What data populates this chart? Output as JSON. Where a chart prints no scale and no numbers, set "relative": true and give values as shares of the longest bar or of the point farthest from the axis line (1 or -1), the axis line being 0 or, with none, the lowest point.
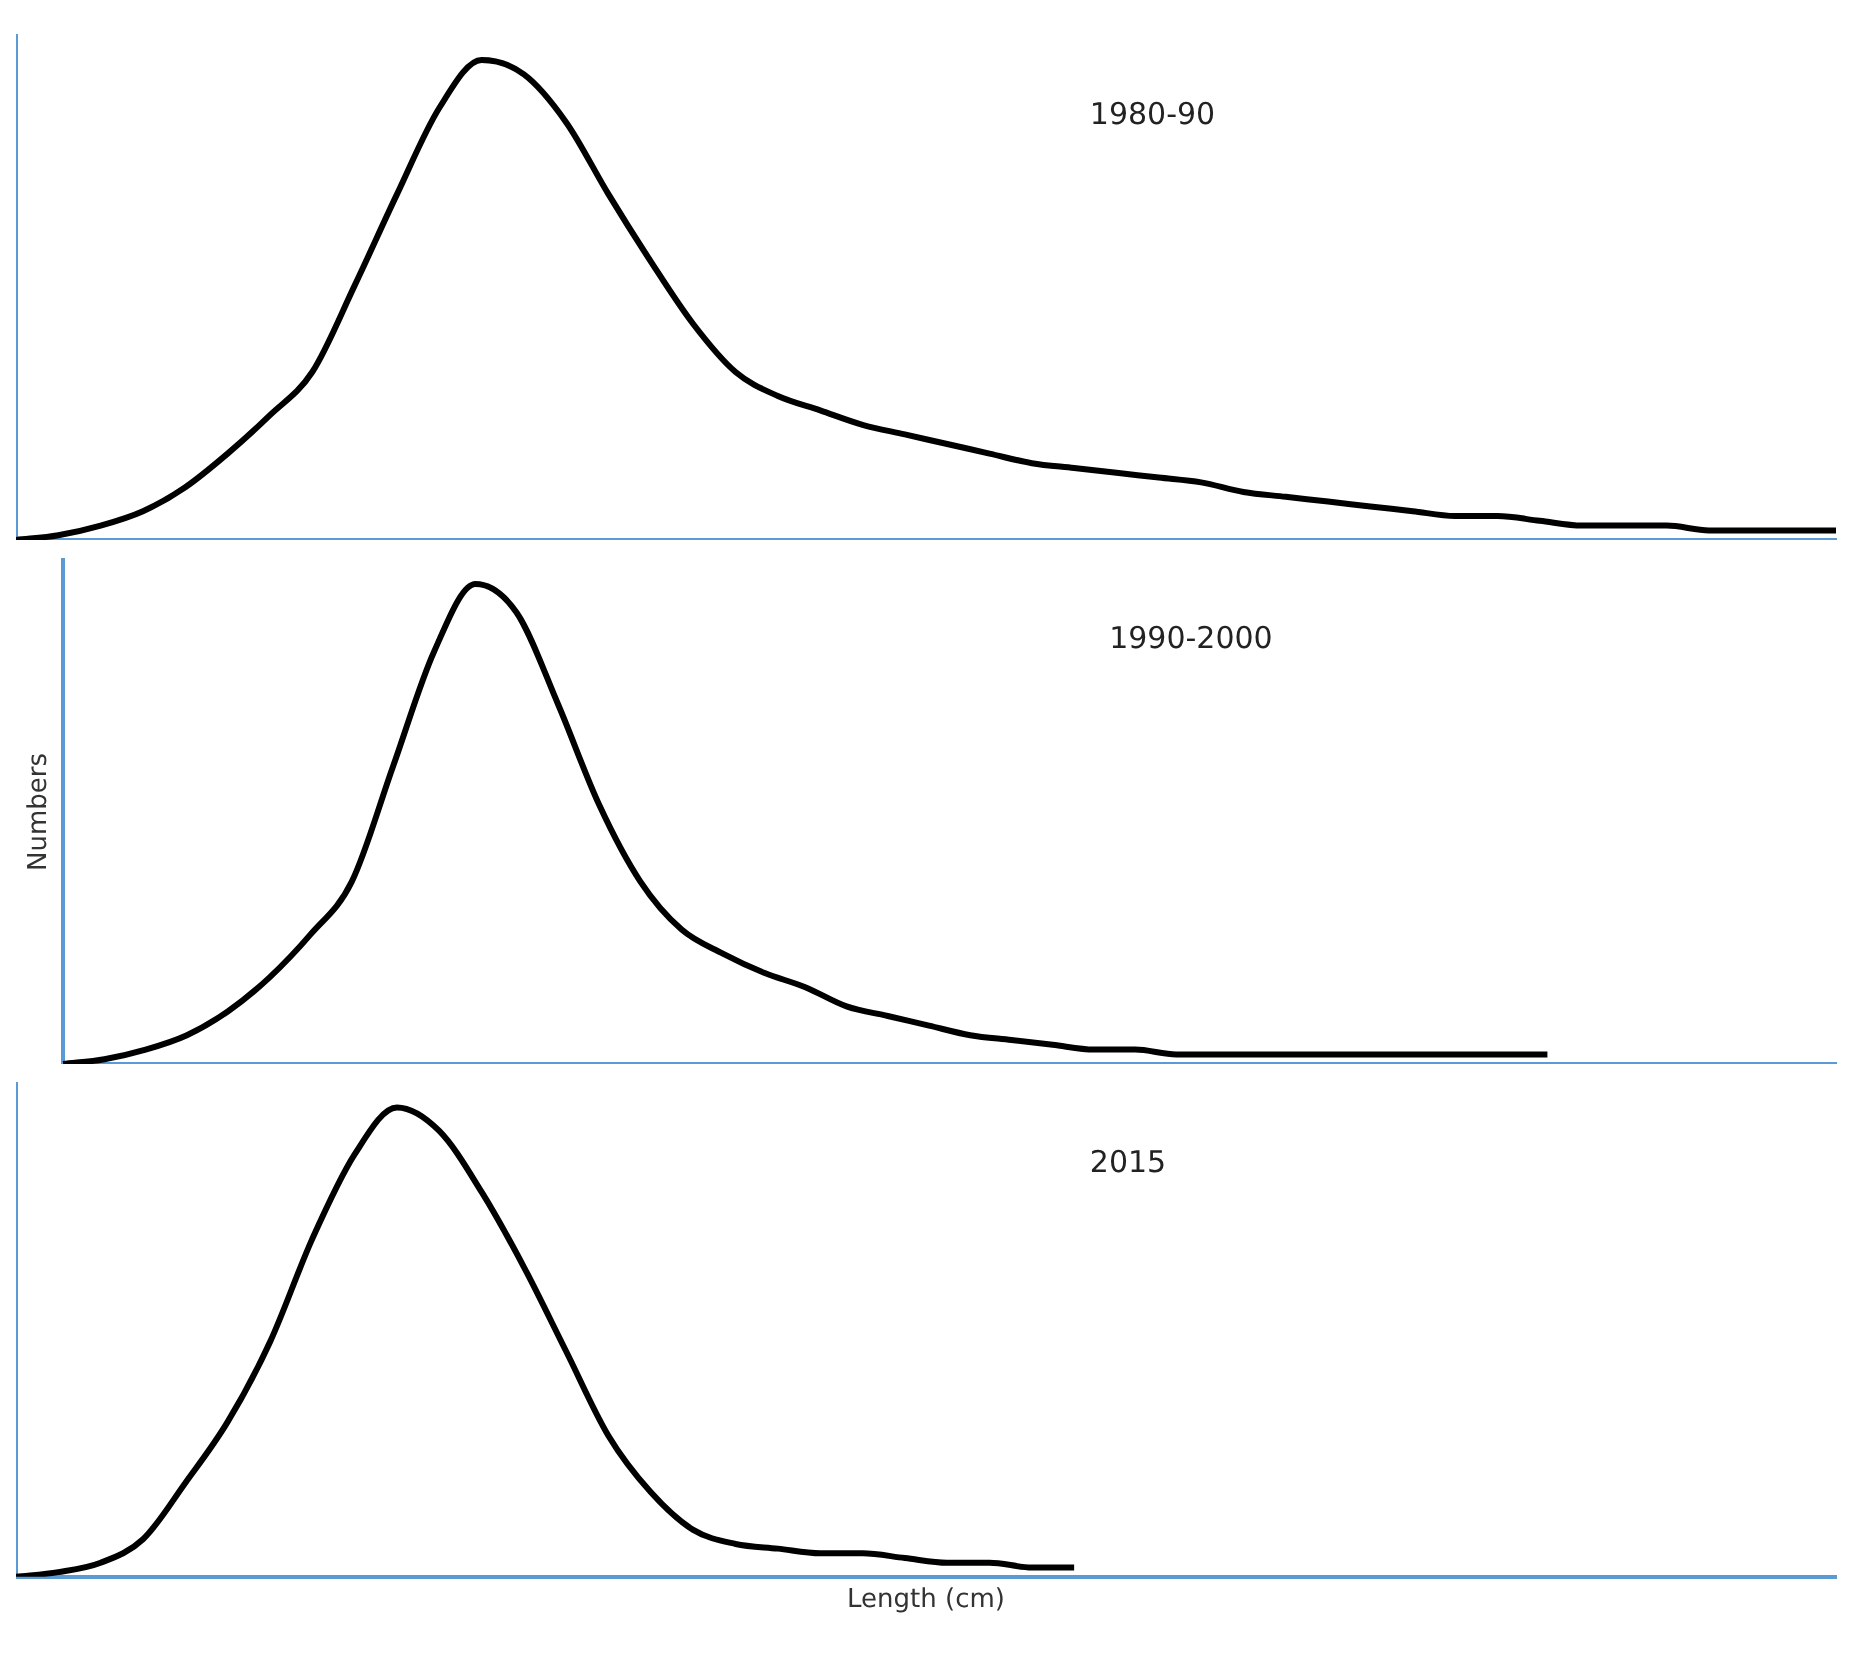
{
  "chart_data": [
    {
      "type": "line",
      "relative": true,
      "color": "#000000",
      "annotations": [
        "1980-90"
      ],
      "categories": [
        null,
        null,
        null,
        null,
        null,
        null,
        null,
        null,
        null,
        null,
        null,
        null,
        null,
        null,
        null,
        null,
        null,
        null,
        null,
        null,
        null,
        null,
        null,
        null,
        null,
        null,
        null,
        null,
        null,
        null,
        null,
        null,
        null,
        null,
        null,
        null,
        null,
        null,
        null,
        null,
        null,
        null,
        null,
        null
      ],
      "values": [
        0,
        0.01,
        0.03,
        0.06,
        0.11,
        0.18,
        0.26,
        0.35,
        0.53,
        0.72,
        0.9,
        1,
        0.97,
        0.87,
        0.72,
        0.58,
        0.45,
        0.35,
        0.3,
        0.27,
        0.24,
        0.22,
        0.2,
        0.18,
        0.16,
        0.15,
        0.14,
        0.13,
        0.12,
        0.1,
        0.09,
        0.08,
        0.07,
        0.06,
        0.05,
        0.05,
        0.04,
        0.03,
        0.03,
        0.03,
        0.02,
        0.02,
        0.02,
        0.02
      ]
    },
    {
      "type": "line",
      "relative": true,
      "color": "#000000",
      "annotations": [
        "1990-2000"
      ],
      "ylabel": "Numbers",
      "categories": [
        null,
        null,
        null,
        null,
        null,
        null,
        null,
        null,
        null,
        null,
        null,
        null,
        null,
        null,
        null,
        null,
        null,
        null,
        null,
        null,
        null,
        null,
        null,
        null,
        null,
        null,
        null,
        null,
        null,
        null,
        null,
        null,
        null,
        null,
        null,
        null,
        null,
        null,
        null,
        null,
        null,
        null,
        null,
        null
      ],
      "values": [
        0,
        0.01,
        0.03,
        0.06,
        0.11,
        0.18,
        0.27,
        0.38,
        0.62,
        0.86,
        1,
        0.94,
        0.75,
        0.54,
        0.38,
        0.28,
        0.23,
        0.19,
        0.16,
        0.12,
        0.1,
        0.08,
        0.06,
        0.05,
        0.04,
        0.03,
        0.03,
        0.02,
        0.02,
        0.02,
        0.02,
        0.02,
        0.02,
        0.02,
        0.02,
        0.02,
        0.02,
        null,
        null,
        null,
        null,
        null,
        null,
        null
      ]
    },
    {
      "type": "line",
      "relative": true,
      "color": "#000000",
      "annotations": [
        "2015"
      ],
      "xlabel": "Length (cm)",
      "categories": [
        null,
        null,
        null,
        null,
        null,
        null,
        null,
        null,
        null,
        null,
        null,
        null,
        null,
        null,
        null,
        null,
        null,
        null,
        null,
        null,
        null,
        null,
        null,
        null,
        null,
        null,
        null,
        null,
        null,
        null,
        null,
        null,
        null,
        null,
        null,
        null,
        null,
        null,
        null,
        null,
        null,
        null,
        null,
        null
      ],
      "values": [
        0,
        0.01,
        0.03,
        0.08,
        0.2,
        0.33,
        0.5,
        0.72,
        0.9,
        1,
        0.95,
        0.82,
        0.66,
        0.48,
        0.3,
        0.18,
        0.1,
        0.07,
        0.06,
        0.05,
        0.05,
        0.04,
        0.03,
        0.03,
        0.02,
        0.02,
        null,
        null,
        null,
        null,
        null,
        null,
        null,
        null,
        null,
        null,
        null,
        null,
        null,
        null,
        null,
        null,
        null,
        null
      ]
    }
  ]
}
